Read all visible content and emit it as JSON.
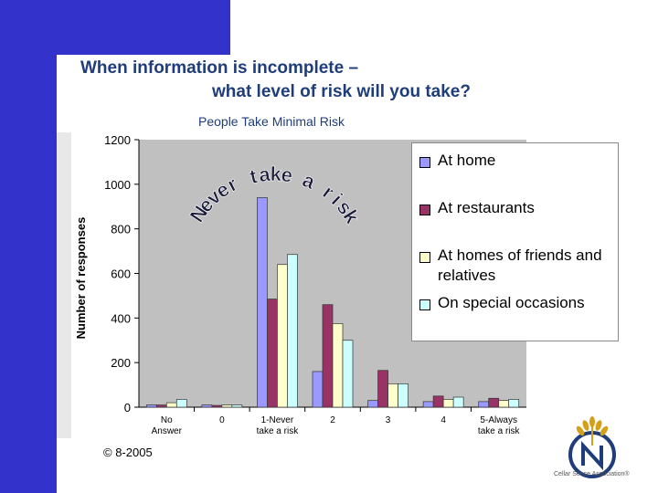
{
  "slide": {
    "title_line1": "When information is incomplete –",
    "title_line2": "what level of risk will you take?",
    "copyright": "© 8-2005",
    "logo_text": "Cellar Sense Association®",
    "colors": {
      "background_blue": "#3333cc",
      "title": "#1f3d7a"
    }
  },
  "chart_data": {
    "type": "bar",
    "title": "People Take Minimal Risk",
    "ylabel": "Number of responses",
    "xlabel": "",
    "ylim": [
      0,
      1200
    ],
    "yticks": [
      "0",
      "200",
      "400",
      "600",
      "800",
      "1000",
      "1200"
    ],
    "categories": [
      "No Answer",
      "0",
      "1-Never take a risk",
      "2",
      "3",
      "4",
      "5-Always take a risk"
    ],
    "category_lines": [
      [
        "No",
        "Answer"
      ],
      [
        "0"
      ],
      [
        "1-Never",
        "take a risk"
      ],
      [
        "2"
      ],
      [
        "3"
      ],
      [
        "4"
      ],
      [
        "5-Always",
        "take a risk"
      ]
    ],
    "series": [
      {
        "name": "At home",
        "color": "#9999ff",
        "values": [
          10,
          10,
          940,
          160,
          30,
          25,
          25
        ]
      },
      {
        "name": "At restaurants",
        "color": "#993366",
        "values": [
          10,
          8,
          485,
          460,
          165,
          50,
          40
        ]
      },
      {
        "name": "At homes of friends and relatives",
        "color": "#ffffcc",
        "values": [
          20,
          10,
          640,
          375,
          105,
          35,
          30
        ]
      },
      {
        "name": "On special occasions",
        "color": "#ccffff",
        "values": [
          35,
          10,
          685,
          300,
          105,
          45,
          35
        ]
      }
    ],
    "annotation": "Never take a risk",
    "grid": false,
    "plot_background": "#c0c0c0",
    "legend_position": "right"
  }
}
